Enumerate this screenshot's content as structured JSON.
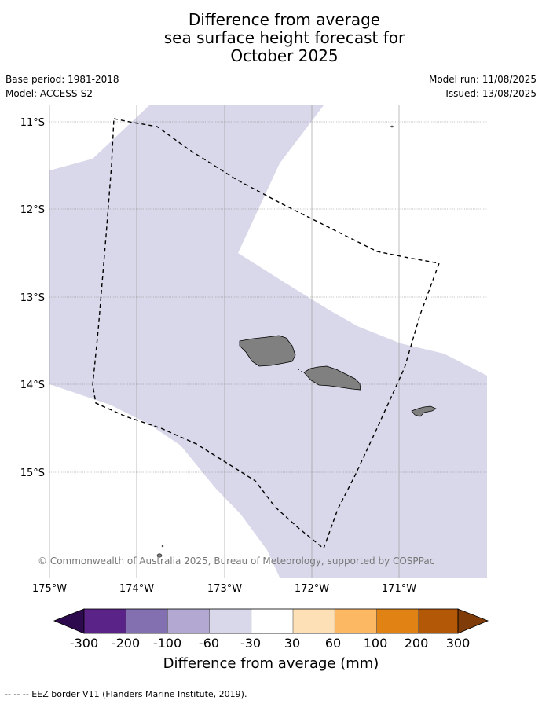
{
  "header": {
    "title_lines": [
      "Difference from average",
      "sea surface height forecast for",
      "October 2025"
    ],
    "base_period": "Base period: 1981-2018",
    "model": "Model: ACCESS-S2",
    "model_run": "Model run: 11/08/2025",
    "issued": "Issued: 13/08/2025"
  },
  "map": {
    "lat_labels": [
      "11°S",
      "12°S",
      "13°S",
      "14°S",
      "15°S"
    ],
    "lon_labels": [
      "175°W",
      "174°W",
      "173°W",
      "172°W",
      "171°W"
    ],
    "copyright": "© Commonwealth of Australia 2025, Bureau of Meteorology, supported by COSPPac",
    "land_color": "#808080",
    "anomaly_fill_color": "#d8d8ea"
  },
  "colorbar": {
    "labels": [
      "-300",
      "-200",
      "-100",
      "-60",
      "-30",
      "30",
      "60",
      "100",
      "200",
      "300"
    ],
    "colors": [
      "#2d0a4e",
      "#5a2388",
      "#8270b0",
      "#b2a8d2",
      "#d8d8ea",
      "#ffffff",
      "#fee0b6",
      "#fdb863",
      "#e08214",
      "#b35806",
      "#7f3b08"
    ],
    "label": "Difference from average (mm)"
  },
  "footnote": "-- -- -- EEZ border V11 (Flanders Marine Institute, 2019)."
}
